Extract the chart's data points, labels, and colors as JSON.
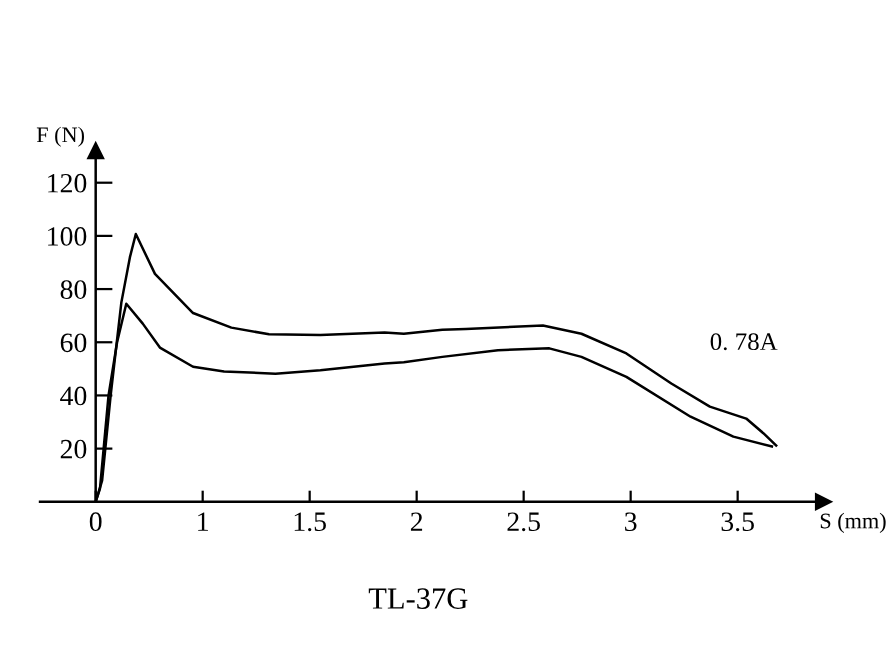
{
  "chart_data": {
    "type": "line",
    "title": "TL-37G",
    "xlabel": "S (mm)",
    "ylabel": "F (N)",
    "annotations": [
      "0. 78A"
    ],
    "series": [
      {
        "color": "#000000",
        "x": [
          0.5,
          0.53,
          0.57,
          0.62,
          0.66,
          0.6875,
          0.777,
          0.955,
          1.134,
          1.31,
          1.55,
          1.85,
          1.94,
          2.12,
          2.23,
          2.59,
          2.77,
          2.98,
          3.19,
          3.37,
          3.54,
          3.62,
          3.68
        ],
        "values": [
          0,
          8,
          40,
          75,
          92,
          100.7,
          85.7,
          71,
          65.5,
          63,
          62.7,
          63.7,
          63.2,
          64.7,
          65,
          66.3,
          63.2,
          55.8,
          44.5,
          35.8,
          31.3,
          25.8,
          21.2
        ]
      },
      {
        "color": "#000000",
        "x": [
          0.5,
          0.52,
          0.56,
          0.6,
          0.643,
          0.72,
          0.8,
          0.955,
          1.1,
          1.34,
          1.55,
          1.85,
          1.94,
          2.12,
          2.38,
          2.62,
          2.77,
          2.98,
          3.28,
          3.48,
          3.66
        ],
        "values": [
          0,
          5,
          40,
          60,
          74.5,
          67,
          58,
          50.8,
          49,
          48.2,
          49.5,
          52,
          52.5,
          54.5,
          57,
          57.7,
          54.5,
          47,
          32,
          24.5,
          20.8
        ]
      }
    ],
    "xlim": [
      0.24,
      3.9
    ],
    "ylim": [
      0,
      132
    ],
    "xticks": [
      {
        "value": 0.5,
        "label": "0"
      },
      1,
      1.5,
      2,
      2.5,
      3,
      3.5
    ],
    "yticks": [
      20,
      40,
      60,
      80,
      100,
      120
    ],
    "grid": false,
    "legend": false,
    "marker": "none",
    "line_style": "solid"
  }
}
